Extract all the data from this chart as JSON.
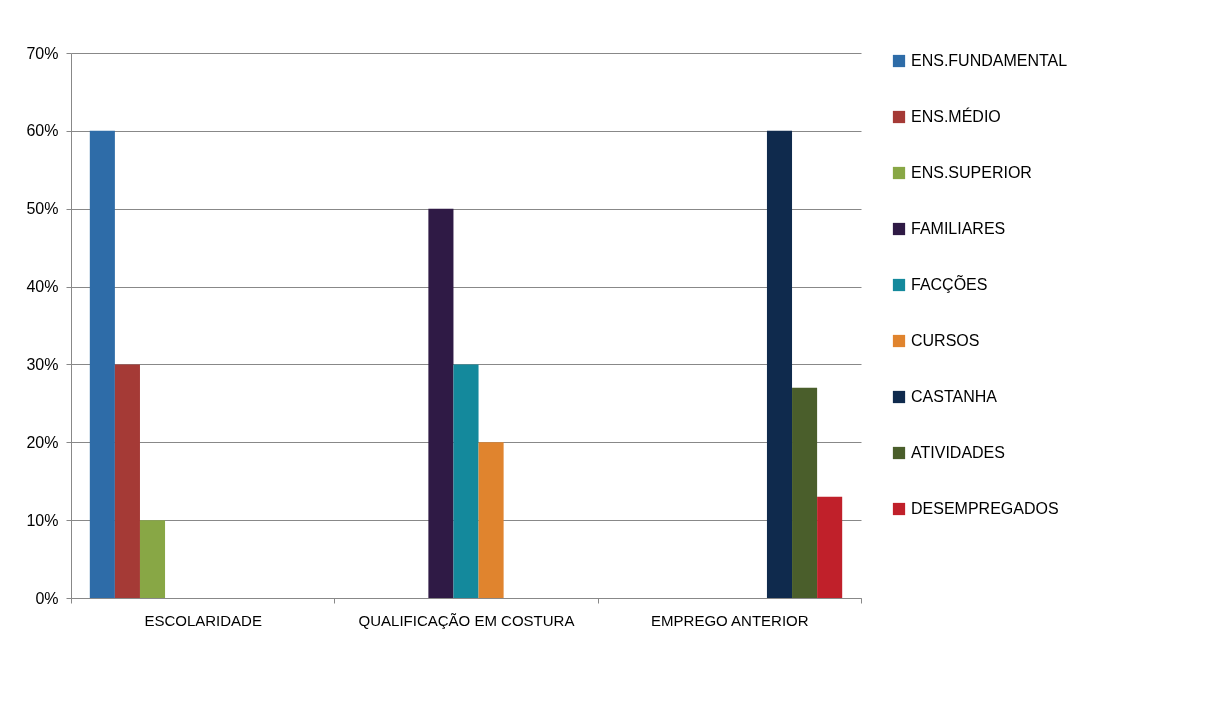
{
  "chart_data": {
    "type": "bar",
    "categories": [
      "ESCOLARIDADE",
      "QUALIFICAÇÃO EM COSTURA",
      "EMPREGO ANTERIOR"
    ],
    "series": [
      {
        "name": "ENS.FUNDAMENTAL",
        "color": "#2e6ca8",
        "values": [
          60,
          null,
          null
        ]
      },
      {
        "name": "ENS.MÉDIO",
        "color": "#a53a36",
        "values": [
          30,
          null,
          null
        ]
      },
      {
        "name": "ENS.SUPERIOR",
        "color": "#88a745",
        "values": [
          10,
          null,
          null
        ]
      },
      {
        "name": "FAMILIARES",
        "color": "#2f1a45",
        "values": [
          null,
          50,
          null
        ]
      },
      {
        "name": "FACÇÕES",
        "color": "#14899c",
        "values": [
          null,
          30,
          null
        ]
      },
      {
        "name": "CURSOS",
        "color": "#e0842e",
        "values": [
          null,
          20,
          null
        ]
      },
      {
        "name": "CASTANHA",
        "color": "#0f2a4d",
        "values": [
          null,
          null,
          60
        ]
      },
      {
        "name": "ATIVIDADES",
        "color": "#4a5e2b",
        "values": [
          null,
          null,
          27
        ]
      },
      {
        "name": "DESEMPREGADOS",
        "color": "#c0202a",
        "values": [
          null,
          null,
          13
        ]
      }
    ],
    "ylim": [
      0,
      70
    ],
    "yticks": [
      {
        "value": 0,
        "label": "0%"
      },
      {
        "value": 10,
        "label": "10%"
      },
      {
        "value": 20,
        "label": "20%"
      },
      {
        "value": 30,
        "label": "30%"
      },
      {
        "value": 40,
        "label": "40%"
      },
      {
        "value": 50,
        "label": "50%"
      },
      {
        "value": 60,
        "label": "60%"
      },
      {
        "value": 70,
        "label": "70%"
      }
    ],
    "grid": "y",
    "legend": "right"
  }
}
